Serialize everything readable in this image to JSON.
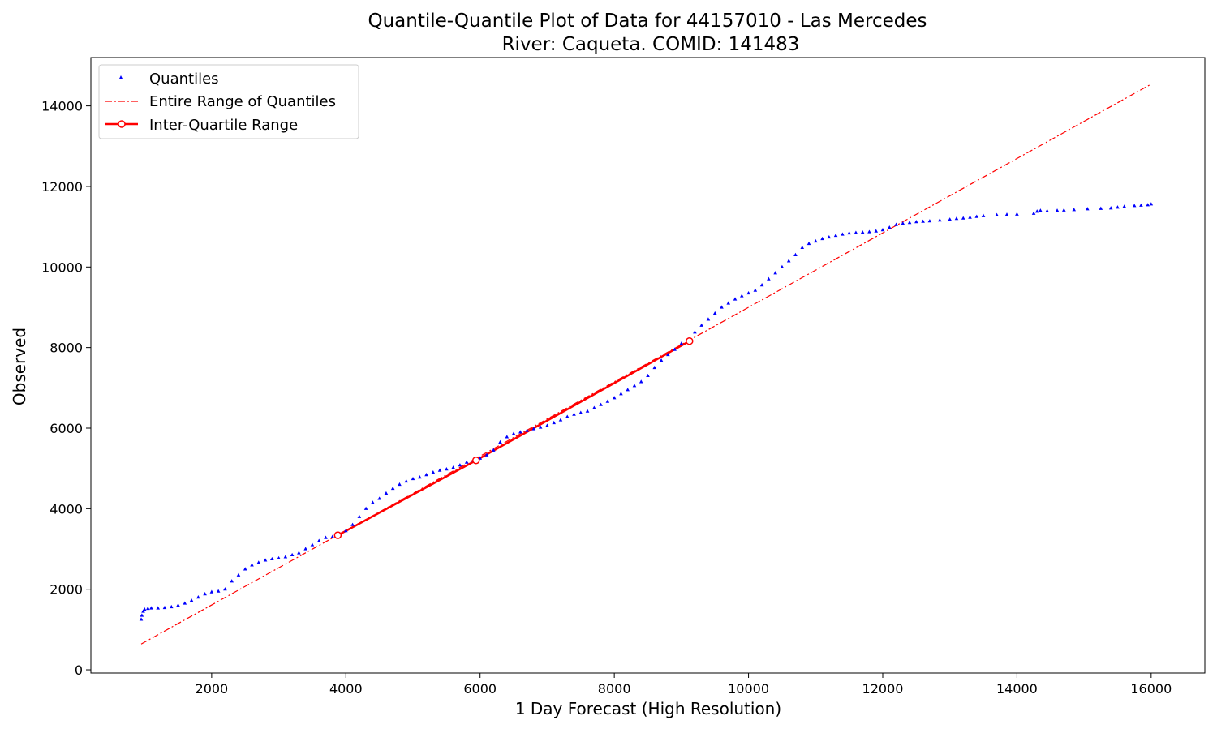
{
  "chart_data": {
    "type": "scatter",
    "title": "Quantile-Quantile Plot of Data for 44157010 - Las Mercedes",
    "subtitle": "River: Caqueta. COMID: 141483",
    "xlabel": "1 Day Forecast (High Resolution)",
    "ylabel": "Observed",
    "xlim": [
      200,
      16800
    ],
    "ylim": [
      -80,
      15200
    ],
    "xticks": [
      2000,
      4000,
      6000,
      8000,
      10000,
      12000,
      14000,
      16000
    ],
    "yticks": [
      0,
      2000,
      4000,
      6000,
      8000,
      10000,
      12000,
      14000
    ],
    "grid": false,
    "legend_position": "top-left",
    "legend": {
      "quantiles": "Quantiles",
      "entire_range": "Entire Range of Quantiles",
      "iqr": "Inter-Quartile Range"
    },
    "colors": {
      "quantiles": "#0000ff",
      "entire_range": "#ff0000",
      "iqr": "#ff0000"
    },
    "series": [
      {
        "name": "Quantiles",
        "style": "points",
        "x": [
          950,
          960,
          980,
          1000,
          1050,
          1100,
          1200,
          1300,
          1400,
          1500,
          1600,
          1700,
          1800,
          1900,
          2000,
          2100,
          2200,
          2300,
          2400,
          2500,
          2600,
          2700,
          2800,
          2900,
          3000,
          3100,
          3200,
          3300,
          3400,
          3500,
          3600,
          3700,
          3800,
          3900,
          4000,
          4100,
          4200,
          4300,
          4400,
          4500,
          4600,
          4700,
          4800,
          4900,
          5000,
          5100,
          5200,
          5300,
          5400,
          5500,
          5600,
          5700,
          5800,
          5900,
          6000,
          6100,
          6200,
          6300,
          6400,
          6500,
          6600,
          6700,
          6800,
          6900,
          7000,
          7100,
          7200,
          7300,
          7400,
          7500,
          7600,
          7700,
          7800,
          7900,
          8000,
          8100,
          8200,
          8300,
          8400,
          8500,
          8600,
          8700,
          8800,
          8900,
          9000,
          9100,
          9200,
          9300,
          9400,
          9500,
          9600,
          9700,
          9800,
          9900,
          10000,
          10100,
          10200,
          10300,
          10400,
          10500,
          10600,
          10700,
          10800,
          10900,
          11000,
          11100,
          11200,
          11300,
          11400,
          11500,
          11600,
          11700,
          11800,
          11900,
          12000,
          12100,
          12200,
          12300,
          12400,
          12500,
          12600,
          12700,
          12850,
          13000,
          13100,
          13200,
          13300,
          13400,
          13500,
          13700,
          13850,
          14000,
          14250,
          14300,
          14350,
          14450,
          14600,
          14700,
          14850,
          15050,
          15250,
          15400,
          15500,
          15600,
          15750,
          15850,
          15950,
          16000
        ],
        "y": [
          1250,
          1350,
          1450,
          1500,
          1520,
          1530,
          1530,
          1540,
          1560,
          1600,
          1650,
          1720,
          1800,
          1880,
          1930,
          1950,
          2000,
          2200,
          2350,
          2500,
          2600,
          2660,
          2720,
          2750,
          2770,
          2800,
          2850,
          2900,
          3000,
          3100,
          3200,
          3280,
          3300,
          3340,
          3450,
          3600,
          3800,
          4000,
          4150,
          4250,
          4380,
          4500,
          4600,
          4680,
          4740,
          4780,
          4840,
          4900,
          4950,
          4980,
          5020,
          5080,
          5150,
          5200,
          5250,
          5330,
          5450,
          5650,
          5780,
          5860,
          5900,
          5940,
          5980,
          6020,
          6060,
          6130,
          6200,
          6280,
          6340,
          6380,
          6420,
          6500,
          6580,
          6660,
          6750,
          6850,
          6950,
          7050,
          7150,
          7300,
          7500,
          7680,
          7820,
          7950,
          8100,
          8200,
          8380,
          8550,
          8700,
          8850,
          9000,
          9100,
          9200,
          9280,
          9350,
          9420,
          9550,
          9700,
          9850,
          10000,
          10150,
          10300,
          10480,
          10580,
          10640,
          10700,
          10740,
          10780,
          10810,
          10840,
          10850,
          10860,
          10870,
          10890,
          10920,
          10980,
          11050,
          11080,
          11100,
          11120,
          11130,
          11140,
          11160,
          11180,
          11200,
          11210,
          11230,
          11250,
          11270,
          11290,
          11300,
          11310,
          11330,
          11380,
          11400,
          11390,
          11400,
          11410,
          11420,
          11440,
          11450,
          11460,
          11480,
          11500,
          11520,
          11530,
          11540,
          11560
        ]
      },
      {
        "name": "Entire Range of Quantiles",
        "style": "dashdot",
        "x": [
          950,
          16000
        ],
        "y": [
          640,
          14540
        ]
      },
      {
        "name": "Inter-Quartile Range",
        "style": "line-markers",
        "x": [
          3880,
          5940,
          9120
        ],
        "y": [
          3340,
          5200,
          8160
        ]
      }
    ]
  }
}
